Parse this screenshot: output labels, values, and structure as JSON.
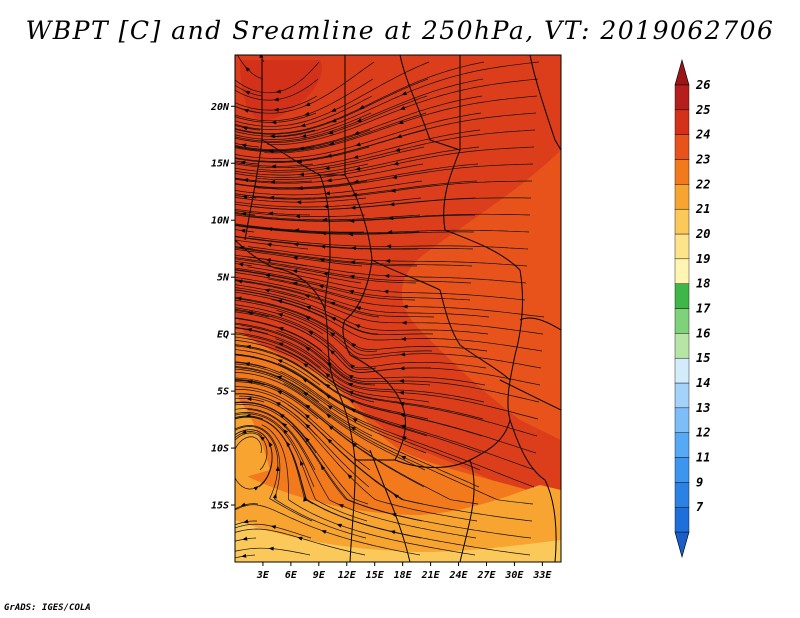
{
  "title": "WBPT [C] and Sreamline at 250hPa, VT: 2019062706",
  "credit": "GrADS: IGES/COLA",
  "map": {
    "lat_labels": [
      "20N",
      "15N",
      "10N",
      "5N",
      "EQ",
      "5S",
      "10S",
      "15S"
    ],
    "lat_values": [
      20,
      15,
      10,
      5,
      0,
      -5,
      -10,
      -15
    ],
    "lon_labels": [
      "3E",
      "6E",
      "9E",
      "12E",
      "15E",
      "18E",
      "21E",
      "24E",
      "27E",
      "30E",
      "33E"
    ],
    "lon_values": [
      3,
      6,
      9,
      12,
      15,
      18,
      21,
      24,
      27,
      30,
      33
    ],
    "lon_range": [
      0,
      35
    ],
    "lat_range": [
      -20,
      24.5
    ]
  },
  "colorbar": {
    "labels": [
      "7",
      "9",
      "11",
      "12",
      "13",
      "14",
      "15",
      "16",
      "17",
      "18",
      "19",
      "20",
      "21",
      "22",
      "23",
      "24",
      "25",
      "26"
    ],
    "colors": [
      "#1e6fd9",
      "#2b82e4",
      "#3c96ef",
      "#55a9f5",
      "#7dbef8",
      "#a4d3fa",
      "#d3ecfc",
      "#b7e5a6",
      "#7dd27a",
      "#3fb648",
      "#fff5b3",
      "#fde48a",
      "#fbc95a",
      "#f7a431",
      "#f2791c",
      "#e8531b",
      "#d4311a",
      "#b51e1c"
    ],
    "bottom_color": "#1a5fc8",
    "top_color": "#9c1616"
  }
}
